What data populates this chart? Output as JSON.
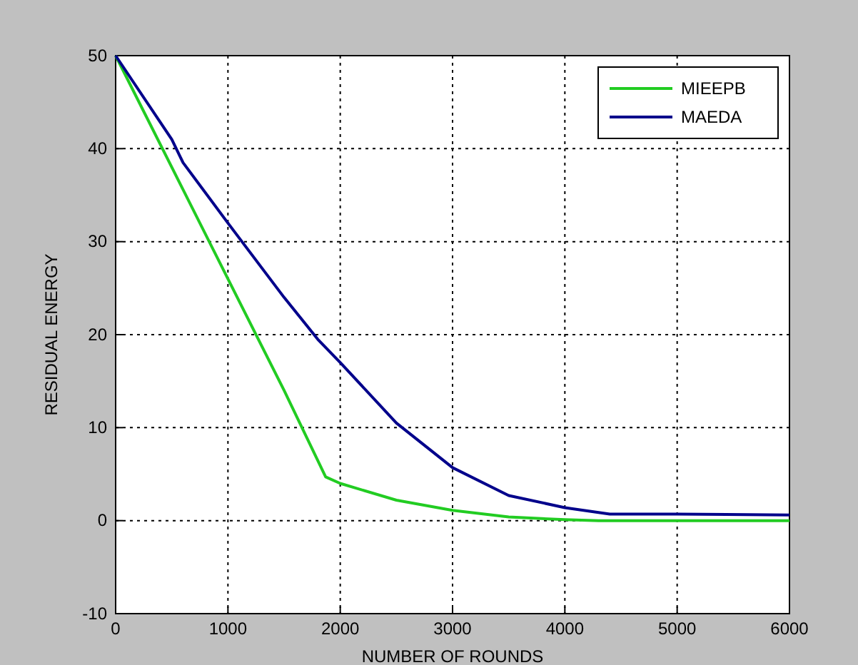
{
  "chart_data": {
    "type": "line",
    "xlabel": "NUMBER OF ROUNDS",
    "ylabel": "RESIDUAL ENERGY",
    "xlim": [
      0,
      6000
    ],
    "xticks": [
      0,
      1000,
      2000,
      3000,
      4000,
      5000,
      6000
    ],
    "ylim": [
      -10,
      50
    ],
    "yticks": [
      -10,
      0,
      10,
      20,
      30,
      40,
      50
    ],
    "grid": true,
    "legend": "top right",
    "line_style": "solid",
    "series": [
      {
        "name": "MIEEPB",
        "color": "#22cc22",
        "x": [
          0,
          500,
          1000,
          1500,
          1870,
          2000,
          2500,
          3000,
          3500,
          4000,
          4300,
          5000,
          6000
        ],
        "values": [
          50,
          38,
          26,
          14,
          4.7,
          4,
          2.2,
          1.1,
          0.4,
          0.1,
          0,
          0,
          0
        ]
      },
      {
        "name": "MAEDA",
        "color": "#00008b",
        "x": [
          0,
          500,
          600,
          1000,
          1500,
          1800,
          2000,
          2500,
          3000,
          3500,
          4000,
          4400,
          5000,
          6000
        ],
        "values": [
          50,
          41,
          38.5,
          32,
          24,
          19.5,
          17,
          10.5,
          5.7,
          2.7,
          1.4,
          0.7,
          0.7,
          0.6
        ]
      }
    ]
  }
}
